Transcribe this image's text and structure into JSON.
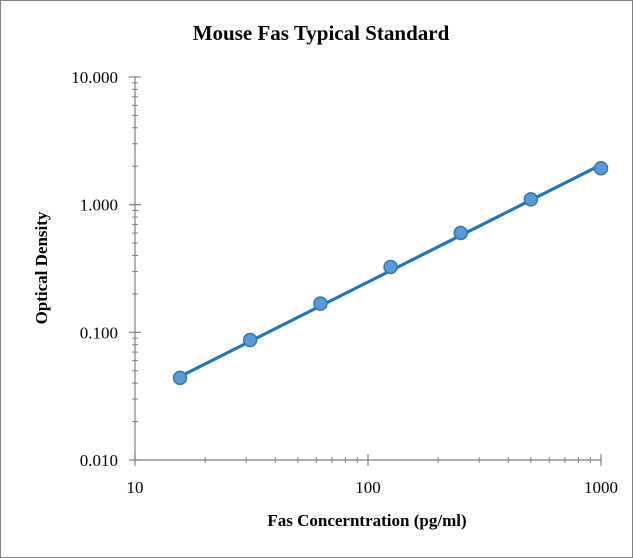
{
  "chart_data": {
    "type": "scatter",
    "title": "Mouse Fas Typical Standard",
    "xlabel": "Fas Concerntration (pg/ml)",
    "ylabel": "Optical Density",
    "x_scale": "log",
    "y_scale": "log",
    "xlim": [
      10,
      1000
    ],
    "ylim": [
      0.01,
      10
    ],
    "x_ticks": [
      "10",
      "100",
      "1000"
    ],
    "y_ticks": [
      "0.010",
      "0.100",
      "1.000",
      "10.000"
    ],
    "grid": false,
    "legend": "none",
    "series": [
      {
        "x": [
          15.6,
          31.2,
          62.5,
          125,
          250,
          500,
          1000
        ],
        "y": [
          0.044,
          0.087,
          0.168,
          0.325,
          0.6,
          1.1,
          1.93
        ]
      }
    ],
    "trendline": {
      "x": [
        15.6,
        1000
      ],
      "y": [
        0.045,
        2.05
      ]
    },
    "colors": {
      "marker_fill": "#5b9bd5",
      "marker_stroke": "#2e75b6",
      "line": "#1f77b9",
      "axis": "#808080"
    }
  }
}
